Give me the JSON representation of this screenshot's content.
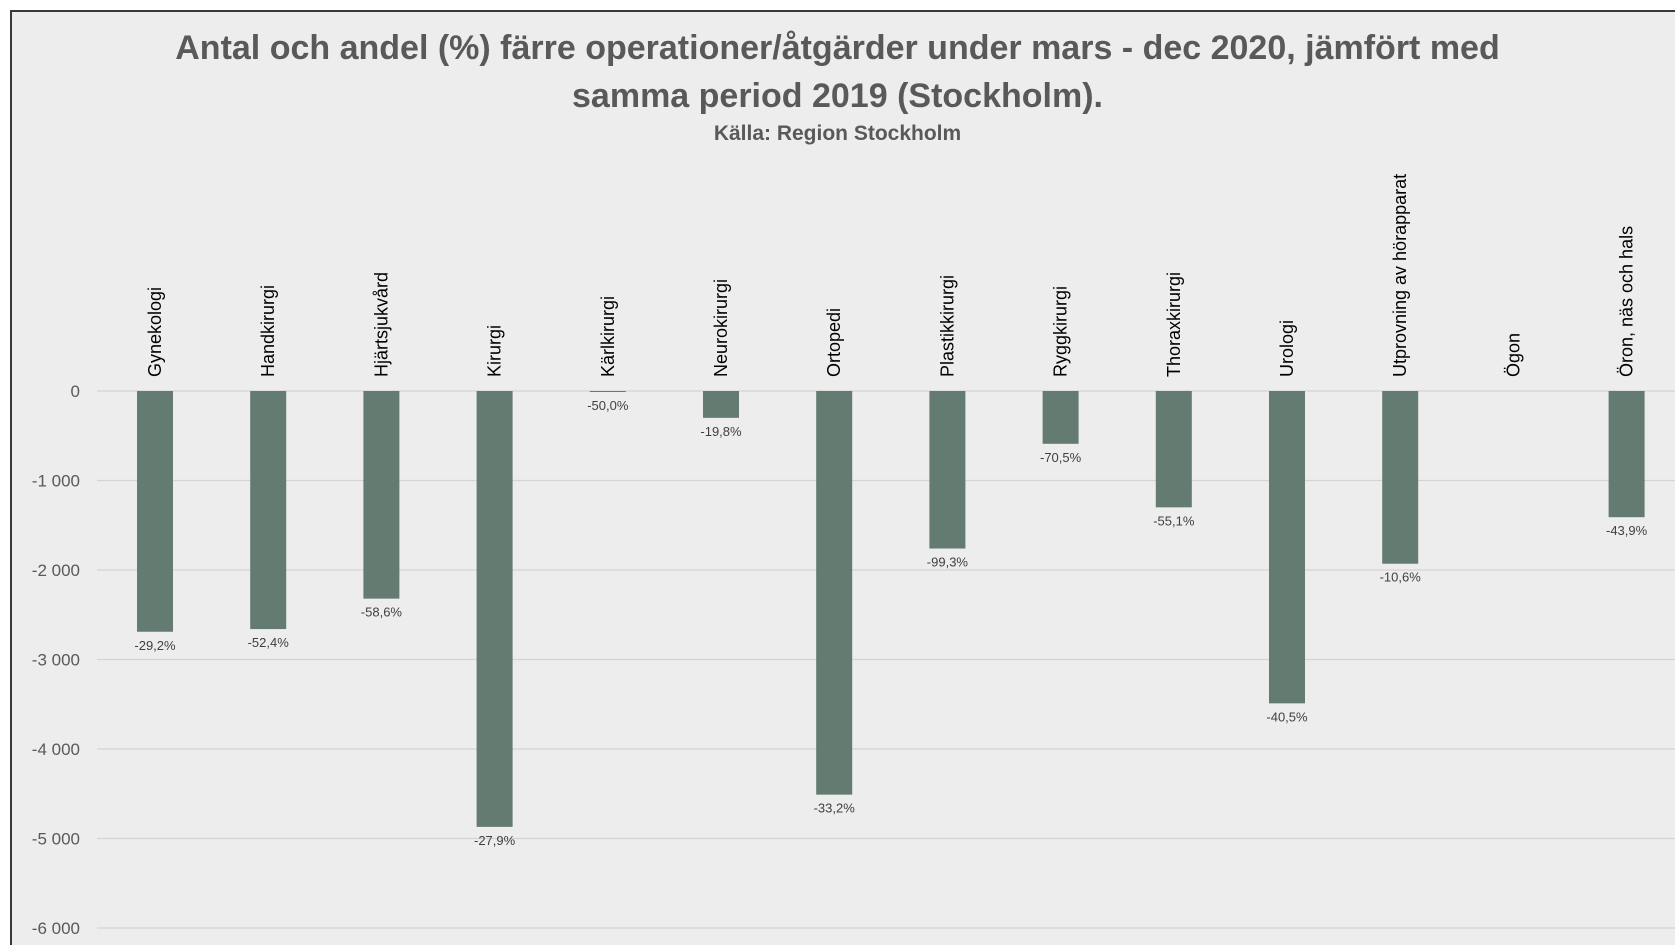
{
  "title_line1": "Antal och andel (%) färre operationer/åtgärder under mars - dec 2020, jämfört med",
  "title_line2": "samma period 2019 (Stockholm).",
  "subtitle": "Källa: Region Stockholm",
  "colors": {
    "bar": "#637b70",
    "grid": "#d4d4d4",
    "background": "#ededed"
  },
  "chart_data": {
    "type": "bar",
    "title": "Antal och andel (%) färre operationer/åtgärder under mars - dec 2020, jämfört med samma period 2019 (Stockholm).",
    "subtitle": "Källa: Region Stockholm",
    "categories": [
      "Gynekologi",
      "Handkirurgi",
      "Hjärtsjukvård",
      "Kirurgi",
      "Kärlkirurgi",
      "Neurokirurgi",
      "Ortopedi",
      "Plastikkirurgi",
      "Ryggkirurgi",
      "Thoraxkirurgi",
      "Urologi",
      "Utprovning av hörapparat",
      "Ögon",
      "Öron, näs och hals"
    ],
    "values": [
      -2690,
      -2660,
      -2320,
      -4870,
      -10,
      -300,
      -4510,
      -1760,
      -590,
      -1300,
      -3490,
      -1930,
      0,
      -1410
    ],
    "data_labels": [
      "-29,2%",
      "-52,4%",
      "-58,6%",
      "-27,9%",
      "-50,0%",
      "-19,8%",
      "-33,2%",
      "-99,3%",
      "-70,5%",
      "-55,1%",
      "-40,5%",
      "-10,6%",
      "",
      "-43,9%"
    ],
    "yticks": [
      0,
      -1000,
      -2000,
      -3000,
      -4000,
      -5000,
      -6000
    ],
    "ytick_labels": [
      "0",
      "-1 000",
      "-2 000",
      "-3 000",
      "-4 000",
      "-5 000",
      "-6 000"
    ],
    "ylim": [
      -6000,
      0
    ],
    "xlabel": "",
    "ylabel": "",
    "grid": true,
    "legend": "none"
  }
}
